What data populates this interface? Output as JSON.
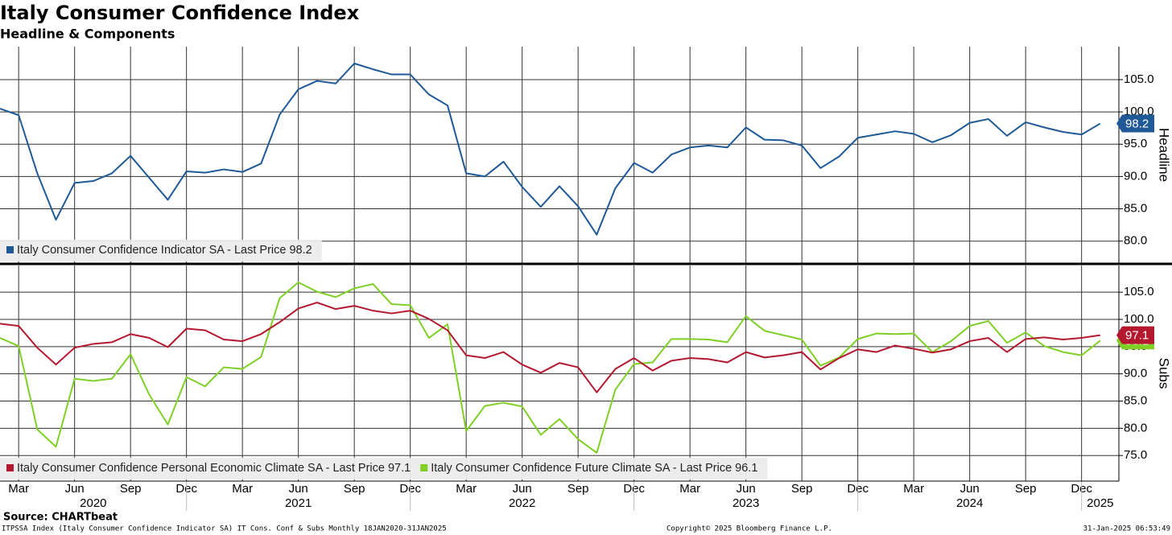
{
  "title": "Italy Consumer Confidence Index",
  "subtitle": "Headline & Components",
  "source": "Source: CHARTbeat",
  "footnote": "ITPSSA Index (Italy Consumer Confidence Indicator SA) IT Cons. Conf & Subs  Monthly 18JAN2020-31JAN2025",
  "copyright": "Copyright© 2025 Bloomberg Finance L.P.",
  "timestamp": "31-Jan-2025 06:53:49",
  "chart_data": [
    {
      "type": "line",
      "ylabel": "Headline",
      "legend": "lower left",
      "grid": true,
      "x": [
        "2020-02",
        "2020-03",
        "2020-04",
        "2020-05",
        "2020-06",
        "2020-07",
        "2020-08",
        "2020-09",
        "2020-10",
        "2020-11",
        "2020-12",
        "2021-01",
        "2021-02",
        "2021-03",
        "2021-04",
        "2021-05",
        "2021-06",
        "2021-07",
        "2021-08",
        "2021-09",
        "2021-10",
        "2021-11",
        "2021-12",
        "2022-01",
        "2022-02",
        "2022-03",
        "2022-04",
        "2022-05",
        "2022-06",
        "2022-07",
        "2022-08",
        "2022-09",
        "2022-10",
        "2022-11",
        "2022-12",
        "2023-01",
        "2023-02",
        "2023-03",
        "2023-04",
        "2023-05",
        "2023-06",
        "2023-07",
        "2023-08",
        "2023-09",
        "2023-10",
        "2023-11",
        "2023-12",
        "2024-01",
        "2024-02",
        "2024-03",
        "2024-04",
        "2024-05",
        "2024-06",
        "2024-07",
        "2024-08",
        "2024-09",
        "2024-10",
        "2024-11",
        "2024-12",
        "2025-01"
      ],
      "xlim": [
        "2020-02",
        "2025-02"
      ],
      "ylim": [
        76.6,
        110.1
      ],
      "yticks": [
        {
          "value": 80,
          "label": "80.0"
        },
        {
          "value": 85,
          "label": "85.0"
        },
        {
          "value": 90,
          "label": "90.0"
        },
        {
          "value": 95,
          "label": "95.0"
        },
        {
          "value": 100,
          "label": "100.0"
        },
        {
          "value": 105,
          "label": "105.0"
        }
      ],
      "series": [
        {
          "name": "Italy Consumer Confidence Indicator SA - Last Price 98.2",
          "color": "#1f5a96",
          "values": [
            100.5,
            99.5,
            90.5,
            83.3,
            89,
            89.3,
            90.5,
            93.2,
            89.8,
            86.4,
            90.8,
            90.6,
            91.1,
            90.7,
            92,
            99.6,
            103.5,
            104.8,
            104.4,
            107.5,
            106.6,
            105.8,
            105.8,
            102.7,
            101,
            90.5,
            90,
            92.3,
            88.4,
            85.3,
            88.5,
            85.4,
            81,
            88.2,
            92.1,
            90.6,
            93.4,
            94.5,
            94.8,
            94.5,
            97.6,
            95.7,
            95.6,
            94.8,
            91.3,
            93.1,
            96,
            96.5,
            97,
            96.6,
            95.3,
            96.4,
            98.3,
            98.9,
            96.3,
            98.4,
            97.6,
            96.9,
            96.5,
            98.2
          ]
        }
      ]
    },
    {
      "type": "line",
      "ylabel": "Subs",
      "legend": "lower left",
      "grid": true,
      "x": [
        "2020-02",
        "2020-03",
        "2020-04",
        "2020-05",
        "2020-06",
        "2020-07",
        "2020-08",
        "2020-09",
        "2020-10",
        "2020-11",
        "2020-12",
        "2021-01",
        "2021-02",
        "2021-03",
        "2021-04",
        "2021-05",
        "2021-06",
        "2021-07",
        "2021-08",
        "2021-09",
        "2021-10",
        "2021-11",
        "2021-12",
        "2022-01",
        "2022-02",
        "2022-03",
        "2022-04",
        "2022-05",
        "2022-06",
        "2022-07",
        "2022-08",
        "2022-09",
        "2022-10",
        "2022-11",
        "2022-12",
        "2023-01",
        "2023-02",
        "2023-03",
        "2023-04",
        "2023-05",
        "2023-06",
        "2023-07",
        "2023-08",
        "2023-09",
        "2023-10",
        "2023-11",
        "2023-12",
        "2024-01",
        "2024-02",
        "2024-03",
        "2024-04",
        "2024-05",
        "2024-06",
        "2024-07",
        "2024-08",
        "2024-09",
        "2024-10",
        "2024-11",
        "2024-12",
        "2025-01"
      ],
      "xlim": [
        "2020-02",
        "2025-02"
      ],
      "xticks": [
        {
          "value": "2020-03",
          "label": "Mar"
        },
        {
          "value": "2020-06",
          "label": "Jun"
        },
        {
          "value": "2020-09",
          "label": "Sep"
        },
        {
          "value": "2020-12",
          "label": "Dec"
        },
        {
          "value": "2021-03",
          "label": "Mar"
        },
        {
          "value": "2021-06",
          "label": "Jun"
        },
        {
          "value": "2021-09",
          "label": "Sep"
        },
        {
          "value": "2021-12",
          "label": "Dec"
        },
        {
          "value": "2022-03",
          "label": "Mar"
        },
        {
          "value": "2022-06",
          "label": "Jun"
        },
        {
          "value": "2022-09",
          "label": "Sep"
        },
        {
          "value": "2022-12",
          "label": "Dec"
        },
        {
          "value": "2023-03",
          "label": "Mar"
        },
        {
          "value": "2023-06",
          "label": "Jun"
        },
        {
          "value": "2023-09",
          "label": "Sep"
        },
        {
          "value": "2023-12",
          "label": "Dec"
        },
        {
          "value": "2024-03",
          "label": "Mar"
        },
        {
          "value": "2024-06",
          "label": "Jun"
        },
        {
          "value": "2024-09",
          "label": "Sep"
        },
        {
          "value": "2024-12",
          "label": "Dec"
        }
      ],
      "years": [
        "2020",
        "2021",
        "2022",
        "2023",
        "2024",
        "2025"
      ],
      "ylim": [
        70.3,
        109.9
      ],
      "yticks": [
        {
          "value": 75,
          "label": "75.0"
        },
        {
          "value": 80,
          "label": "80.0"
        },
        {
          "value": 85,
          "label": "85.0"
        },
        {
          "value": 90,
          "label": "90.0"
        },
        {
          "value": 95,
          "label": "95.0"
        },
        {
          "value": 100,
          "label": "100.0"
        },
        {
          "value": 105,
          "label": "105.0"
        }
      ],
      "series": [
        {
          "name": "Italy Consumer Confidence Future Climate SA - Last Price 96.1",
          "color": "#7fcf26",
          "values": [
            96.6,
            95.1,
            79.8,
            76.6,
            89.1,
            88.7,
            89.1,
            93.6,
            86.2,
            80.7,
            89.4,
            87.7,
            91.2,
            90.9,
            93.1,
            103.9,
            106.8,
            105.1,
            104.1,
            105.7,
            106.5,
            102.8,
            102.6,
            96.6,
            99.1,
            79.5,
            84.1,
            84.7,
            84,
            78.8,
            81.7,
            78,
            75.5,
            87.1,
            91.8,
            92.1,
            96.4,
            96.4,
            96.3,
            95.8,
            100.6,
            97.9,
            97.1,
            96.3,
            91.5,
            93,
            96.4,
            97.4,
            97.3,
            97.4,
            94,
            96,
            98.8,
            99.7,
            95.7,
            97.6,
            95.1,
            94,
            93.4,
            96.1
          ]
        },
        {
          "name": "Italy Consumer Confidence Personal Economic Climate SA - Last Price 97.1",
          "color": "#b3182f",
          "values": [
            99.2,
            98.8,
            94.8,
            91.7,
            94.8,
            95.5,
            95.8,
            97.3,
            96.6,
            94.9,
            98.3,
            98,
            96.3,
            96,
            97.3,
            99.5,
            102,
            103.1,
            101.9,
            102.5,
            101.6,
            101.1,
            101.6,
            100.1,
            98,
            93.4,
            92.9,
            94,
            91.7,
            90.2,
            92,
            91.2,
            86.6,
            90.9,
            92.9,
            90.6,
            92.4,
            92.9,
            92.7,
            92.1,
            94,
            93,
            93.4,
            94,
            90.8,
            92.9,
            94.5,
            94,
            95.2,
            94.6,
            93.9,
            94.5,
            96,
            96.6,
            94,
            96.4,
            96.7,
            96.3,
            96.6,
            97.1
          ]
        }
      ],
      "legend_order": [
        1,
        0
      ]
    }
  ]
}
